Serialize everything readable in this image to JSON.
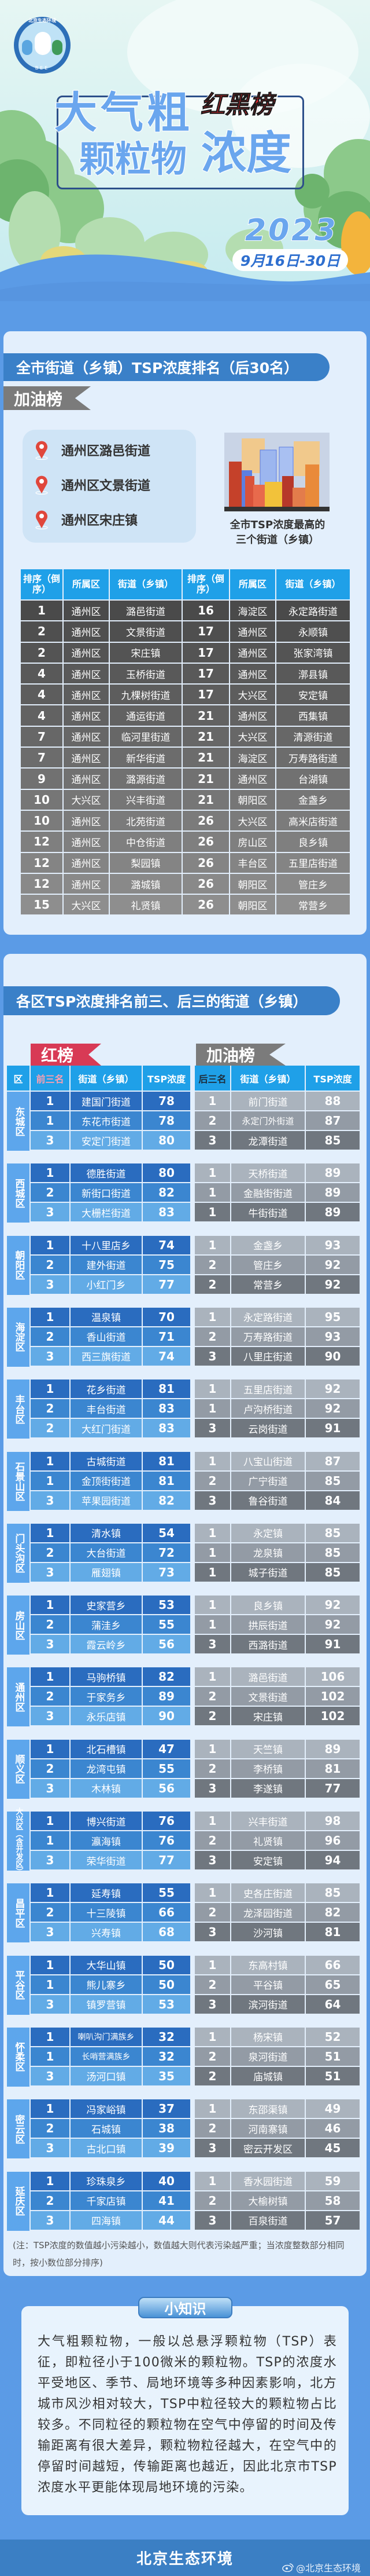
{
  "hero": {
    "logo_text": "北京生态环境",
    "logo_sub": "BEE",
    "title_line1": "大气粗",
    "title_line2": "颗粒物",
    "title_line3": "浓度",
    "badge": "红黑榜",
    "year": "2023",
    "date": "9月16日-30日"
  },
  "ranking": {
    "title": "全市街道（乡镇）TSP浓度排名（后30名）",
    "tab_label": "加油榜",
    "top3": [
      "通州区潞邑街道",
      "通州区文景街道",
      "通州区宋庄镇"
    ],
    "caption_line1": "全市TSP浓度最高的",
    "caption_line2": "三个街道（乡镇）",
    "table": {
      "headers": [
        "排序（倒序）",
        "所属区",
        "街道（乡镇）",
        "排序（倒序）",
        "所属区",
        "街道（乡镇）"
      ],
      "rows": [
        [
          "1",
          "通州区",
          "潞邑街道",
          "16",
          "海淀区",
          "永定路街道"
        ],
        [
          "2",
          "通州区",
          "文景街道",
          "17",
          "通州区",
          "永顺镇"
        ],
        [
          "2",
          "通州区",
          "宋庄镇",
          "17",
          "通州区",
          "张家湾镇"
        ],
        [
          "4",
          "通州区",
          "玉桥街道",
          "17",
          "通州区",
          "漷县镇"
        ],
        [
          "4",
          "通州区",
          "九棵树街道",
          "17",
          "大兴区",
          "安定镇"
        ],
        [
          "4",
          "通州区",
          "通运街道",
          "21",
          "通州区",
          "西集镇"
        ],
        [
          "7",
          "通州区",
          "临河里街道",
          "21",
          "大兴区",
          "清源街道"
        ],
        [
          "7",
          "通州区",
          "新华街道",
          "21",
          "海淀区",
          "万寿路街道"
        ],
        [
          "9",
          "通州区",
          "潞源街道",
          "21",
          "通州区",
          "台湖镇"
        ],
        [
          "10",
          "大兴区",
          "兴丰街道",
          "21",
          "朝阳区",
          "金盏乡"
        ],
        [
          "10",
          "通州区",
          "北苑街道",
          "26",
          "大兴区",
          "高米店街道"
        ],
        [
          "12",
          "通州区",
          "中仓街道",
          "26",
          "房山区",
          "良乡镇"
        ],
        [
          "12",
          "通州区",
          "梨园镇",
          "26",
          "丰台区",
          "五里店街道"
        ],
        [
          "12",
          "通州区",
          "潞城镇",
          "26",
          "朝阳区",
          "管庄乡"
        ],
        [
          "15",
          "大兴区",
          "礼贤镇",
          "26",
          "朝阳区",
          "常营乡"
        ]
      ]
    }
  },
  "districts": {
    "title": "各区TSP浓度排名前三、后三的街道（乡镇）",
    "red_label": "红榜",
    "gray_label": "加油榜",
    "left_headers": [
      "区",
      "前三名",
      "街道（乡镇）",
      "TSP浓度"
    ],
    "right_headers": [
      "后三名",
      "街道（乡镇）",
      "TSP浓度"
    ],
    "groups": [
      {
        "name": "东城区",
        "top": [
          {
            "rank": "1",
            "name": "建国门街道",
            "value": "78"
          },
          {
            "rank": "1",
            "name": "东花市街道",
            "value": "78"
          },
          {
            "rank": "3",
            "name": "安定门街道",
            "value": "80"
          }
        ],
        "bottom": [
          {
            "rank": "1",
            "name": "前门街道",
            "value": "88"
          },
          {
            "rank": "2",
            "name": "永定门外街道",
            "value": "87"
          },
          {
            "rank": "3",
            "name": "龙潭街道",
            "value": "85"
          }
        ]
      },
      {
        "name": "西城区",
        "top": [
          {
            "rank": "1",
            "name": "德胜街道",
            "value": "80"
          },
          {
            "rank": "2",
            "name": "新街口街道",
            "value": "82"
          },
          {
            "rank": "3",
            "name": "大栅栏街道",
            "value": "83"
          }
        ],
        "bottom": [
          {
            "rank": "1",
            "name": "天桥街道",
            "value": "89"
          },
          {
            "rank": "1",
            "name": "金融街街道",
            "value": "89"
          },
          {
            "rank": "1",
            "name": "牛街街道",
            "value": "89"
          }
        ]
      },
      {
        "name": "朝阳区",
        "top": [
          {
            "rank": "1",
            "name": "十八里店乡",
            "value": "74"
          },
          {
            "rank": "2",
            "name": "建外街道",
            "value": "75"
          },
          {
            "rank": "3",
            "name": "小红门乡",
            "value": "77"
          }
        ],
        "bottom": [
          {
            "rank": "1",
            "name": "金盏乡",
            "value": "93"
          },
          {
            "rank": "2",
            "name": "管庄乡",
            "value": "92"
          },
          {
            "rank": "2",
            "name": "常营乡",
            "value": "92"
          }
        ]
      },
      {
        "name": "海淀区",
        "top": [
          {
            "rank": "1",
            "name": "温泉镇",
            "value": "70"
          },
          {
            "rank": "2",
            "name": "香山街道",
            "value": "71"
          },
          {
            "rank": "3",
            "name": "西三旗街道",
            "value": "74"
          }
        ],
        "bottom": [
          {
            "rank": "1",
            "name": "永定路街道",
            "value": "95"
          },
          {
            "rank": "2",
            "name": "万寿路街道",
            "value": "93"
          },
          {
            "rank": "3",
            "name": "八里庄街道",
            "value": "90"
          }
        ]
      },
      {
        "name": "丰台区",
        "top": [
          {
            "rank": "1",
            "name": "花乡街道",
            "value": "81"
          },
          {
            "rank": "2",
            "name": "丰台街道",
            "value": "83"
          },
          {
            "rank": "2",
            "name": "大红门街道",
            "value": "83"
          }
        ],
        "bottom": [
          {
            "rank": "1",
            "name": "五里店街道",
            "value": "92"
          },
          {
            "rank": "1",
            "name": "卢沟桥街道",
            "value": "92"
          },
          {
            "rank": "3",
            "name": "云岗街道",
            "value": "91"
          }
        ]
      },
      {
        "name": "石景山区",
        "top": [
          {
            "rank": "1",
            "name": "古城街道",
            "value": "81"
          },
          {
            "rank": "1",
            "name": "金顶街街道",
            "value": "81"
          },
          {
            "rank": "3",
            "name": "苹果园街道",
            "value": "82"
          }
        ],
        "bottom": [
          {
            "rank": "1",
            "name": "八宝山街道",
            "value": "87"
          },
          {
            "rank": "2",
            "name": "广宁街道",
            "value": "85"
          },
          {
            "rank": "3",
            "name": "鲁谷街道",
            "value": "84"
          }
        ]
      },
      {
        "name": "门头沟区",
        "top": [
          {
            "rank": "1",
            "name": "清水镇",
            "value": "54"
          },
          {
            "rank": "2",
            "name": "大台街道",
            "value": "72"
          },
          {
            "rank": "3",
            "name": "雁翅镇",
            "value": "73"
          }
        ],
        "bottom": [
          {
            "rank": "1",
            "name": "永定镇",
            "value": "85"
          },
          {
            "rank": "1",
            "name": "龙泉镇",
            "value": "85"
          },
          {
            "rank": "1",
            "name": "城子街道",
            "value": "85"
          }
        ]
      },
      {
        "name": "房山区",
        "top": [
          {
            "rank": "1",
            "name": "史家营乡",
            "value": "53"
          },
          {
            "rank": "2",
            "name": "蒲洼乡",
            "value": "55"
          },
          {
            "rank": "3",
            "name": "霞云岭乡",
            "value": "56"
          }
        ],
        "bottom": [
          {
            "rank": "1",
            "name": "良乡镇",
            "value": "92"
          },
          {
            "rank": "1",
            "name": "拱辰街道",
            "value": "92"
          },
          {
            "rank": "3",
            "name": "西潞街道",
            "value": "91"
          }
        ]
      },
      {
        "name": "通州区",
        "top": [
          {
            "rank": "1",
            "name": "马驹桥镇",
            "value": "82"
          },
          {
            "rank": "2",
            "name": "于家务乡",
            "value": "89"
          },
          {
            "rank": "3",
            "name": "永乐店镇",
            "value": "90"
          }
        ],
        "bottom": [
          {
            "rank": "1",
            "name": "潞邑街道",
            "value": "106"
          },
          {
            "rank": "2",
            "name": "文景街道",
            "value": "102"
          },
          {
            "rank": "2",
            "name": "宋庄镇",
            "value": "102"
          }
        ]
      },
      {
        "name": "顺义区",
        "top": [
          {
            "rank": "1",
            "name": "北石槽镇",
            "value": "47"
          },
          {
            "rank": "2",
            "name": "龙湾屯镇",
            "value": "55"
          },
          {
            "rank": "3",
            "name": "木林镇",
            "value": "56"
          }
        ],
        "bottom": [
          {
            "rank": "1",
            "name": "天竺镇",
            "value": "89"
          },
          {
            "rank": "2",
            "name": "李桥镇",
            "value": "81"
          },
          {
            "rank": "3",
            "name": "李遂镇",
            "value": "77"
          }
        ]
      },
      {
        "name": "大兴区（含开发区）",
        "top": [
          {
            "rank": "1",
            "name": "博兴街道",
            "value": "76"
          },
          {
            "rank": "1",
            "name": "瀛海镇",
            "value": "76"
          },
          {
            "rank": "3",
            "name": "荣华街道",
            "value": "77"
          }
        ],
        "bottom": [
          {
            "rank": "1",
            "name": "兴丰街道",
            "value": "98"
          },
          {
            "rank": "2",
            "name": "礼贤镇",
            "value": "96"
          },
          {
            "rank": "3",
            "name": "安定镇",
            "value": "94"
          }
        ]
      },
      {
        "name": "昌平区",
        "top": [
          {
            "rank": "1",
            "name": "延寿镇",
            "value": "55"
          },
          {
            "rank": "2",
            "name": "十三陵镇",
            "value": "66"
          },
          {
            "rank": "3",
            "name": "兴寿镇",
            "value": "68"
          }
        ],
        "bottom": [
          {
            "rank": "1",
            "name": "史各庄街道",
            "value": "85"
          },
          {
            "rank": "2",
            "name": "龙泽园街道",
            "value": "82"
          },
          {
            "rank": "3",
            "name": "沙河镇",
            "value": "81"
          }
        ]
      },
      {
        "name": "平谷区",
        "top": [
          {
            "rank": "1",
            "name": "大华山镇",
            "value": "50"
          },
          {
            "rank": "1",
            "name": "熊儿寨乡",
            "value": "50"
          },
          {
            "rank": "3",
            "name": "镇罗营镇",
            "value": "53"
          }
        ],
        "bottom": [
          {
            "rank": "1",
            "name": "东高村镇",
            "value": "66"
          },
          {
            "rank": "2",
            "name": "平谷镇",
            "value": "65"
          },
          {
            "rank": "3",
            "name": "滨河街道",
            "value": "64"
          }
        ]
      },
      {
        "name": "怀柔区",
        "top": [
          {
            "rank": "1",
            "name": "喇叭沟门满族乡",
            "value": "32"
          },
          {
            "rank": "1",
            "name": "长哨营满族乡",
            "value": "32"
          },
          {
            "rank": "3",
            "name": "汤河口镇",
            "value": "35"
          }
        ],
        "bottom": [
          {
            "rank": "1",
            "name": "杨宋镇",
            "value": "52"
          },
          {
            "rank": "2",
            "name": "泉河街道",
            "value": "51"
          },
          {
            "rank": "2",
            "name": "庙城镇",
            "value": "51"
          }
        ]
      },
      {
        "name": "密云区",
        "top": [
          {
            "rank": "1",
            "name": "冯家峪镇",
            "value": "37"
          },
          {
            "rank": "2",
            "name": "石城镇",
            "value": "38"
          },
          {
            "rank": "3",
            "name": "古北口镇",
            "value": "39"
          }
        ],
        "bottom": [
          {
            "rank": "1",
            "name": "东邵渠镇",
            "value": "49"
          },
          {
            "rank": "2",
            "name": "河南寨镇",
            "value": "46"
          },
          {
            "rank": "3",
            "name": "密云开发区",
            "value": "45"
          }
        ]
      },
      {
        "name": "延庆区",
        "top": [
          {
            "rank": "1",
            "name": "珍珠泉乡",
            "value": "40"
          },
          {
            "rank": "2",
            "name": "千家店镇",
            "value": "41"
          },
          {
            "rank": "3",
            "name": "四海镇",
            "value": "44"
          }
        ],
        "bottom": [
          {
            "rank": "1",
            "name": "香水园街道",
            "value": "59"
          },
          {
            "rank": "2",
            "name": "大榆树镇",
            "value": "58"
          },
          {
            "rank": "3",
            "name": "百泉街道",
            "value": "57"
          }
        ]
      }
    ],
    "note": "(注：TSP浓度的数值越小污染越小，数值越大则代表污染越严重；当浓度整数部分相同时，按小数位部分排序)"
  },
  "knowledge": {
    "title": "小知识",
    "text": "大气粗颗粒物，一般以总悬浮颗粒物（TSP）表征，即粒径小于100微米的颗粒物。TSP的浓度水平受地区、季节、局地环境等多种因素影响，北方城市风沙相对较大，TSP中粒径较大的颗粒物占比较多。不同粒径的颗粒物在空气中停留的时间及传输距离有很大差异，颗粒物粒径越大，在空气中的停留时间越短，传输距离也越近，因此北京市TSP浓度水平更能体现局地环境的污染。"
  },
  "footer": {
    "brand": "北京生态环境",
    "watermark": "@北京生态环境"
  },
  "colors": {
    "page_blue": "#5b9be6",
    "banner_blue": "#3a80c8",
    "header_blue": "#1fa0e8",
    "red_label": "#d83a55",
    "gray_label": "#7b7b7b",
    "pin_red": "#e0473c"
  },
  "icons": [
    "location-pin-icon",
    "weibo-icon",
    "city-buildings-illustration",
    "mascot-logo"
  ]
}
